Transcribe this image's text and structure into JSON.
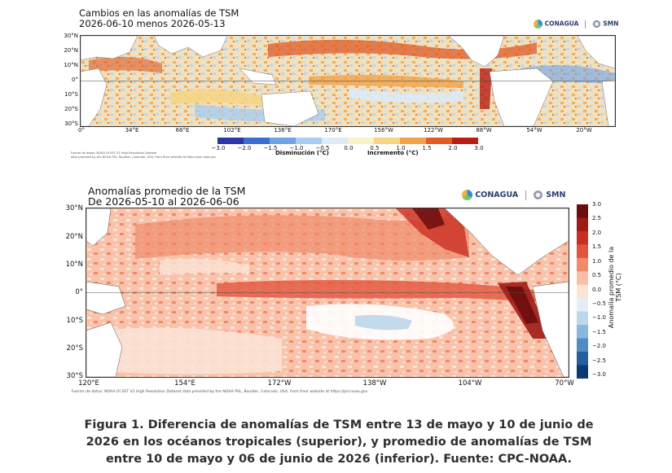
{
  "panel1": {
    "title_line1": "Cambios en las anomalías de TSM",
    "title_line2": "2026-06-10 menos 2026-05-13",
    "lat_labels": [
      "30°N",
      "20°N",
      "10°N",
      "0°",
      "10°S",
      "20°S",
      "30°S"
    ],
    "lon_labels": [
      "0°",
      "34°E",
      "68°E",
      "102°E",
      "136°E",
      "170°E",
      "156°W",
      "122°W",
      "88°W",
      "54°W",
      "20°W"
    ],
    "colorbar_ticks": [
      "−3.0",
      "−2.0",
      "−1.5",
      "−1.0",
      "−0.5",
      "0.0",
      "0.5",
      "1.0",
      "1.5",
      "2.0",
      "3.0"
    ],
    "colorbar_colors": [
      "#2b36a8",
      "#3a6fd0",
      "#6fa4e4",
      "#a9cdf0",
      "#dcebf7",
      "#f7f2c8",
      "#f6d585",
      "#f0a348",
      "#e25b22",
      "#b81c12"
    ],
    "label_decrease": "Disminución (°C)",
    "label_increase": "Incremento (°C)",
    "source_line1": "Fuente de datos: NOAA OI SST V2 High Resolution Dataset",
    "source_line2": "data provided by the NOAA PSL, Boulder, Colorado, USA, from their website at https://psl.noaa.gov",
    "logo_left": "CONAGUA",
    "logo_right": "SMN"
  },
  "panel2": {
    "title_line1": "Anomalías promedio de la TSM",
    "title_line2": "De 2026-05-10 al 2026-06-06",
    "lat_labels": [
      "30°N",
      "20°N",
      "10°N",
      "0°",
      "10°S",
      "20°S",
      "30°S"
    ],
    "lon_labels": [
      "120°E",
      "154°E",
      "172°W",
      "138°W",
      "104°W",
      "70°W"
    ],
    "colorbar_ticks": [
      "3.0",
      "2.5",
      "2.0",
      "1.5",
      "1.0",
      "0.5",
      "0.0",
      "−0.5",
      "−1.0",
      "−1.5",
      "−2.0",
      "−2.5",
      "−3.0"
    ],
    "colorbar_colors": [
      "#6b0d0d",
      "#9e1b16",
      "#c92e22",
      "#e2553c",
      "#f08a6a",
      "#f8bfa6",
      "#fbe3d6",
      "#e3eef7",
      "#bcd6ea",
      "#8ab7db",
      "#4f8cc2",
      "#23609c",
      "#0b3a70"
    ],
    "colorbar_label": "Anomalía promedio de la TSM (°C)",
    "source": "Fuente de datos: NOAA OI SST V2 High Resolution Dataset data provided by the NOAA PSL, Boulder, Colorado, USA, from their website at https://psl.noaa.gov",
    "logo_left": "CONAGUA",
    "logo_right": "SMN"
  },
  "caption": "Figura 1. Diferencia de anomalías de TSM entre 13 de mayo y 10 de junio de 2026 en los océanos tropicales (superior), y promedio de anomalías de TSM entre 10 de mayo y 06 de junio de 2026 (inferior). Fuente: CPC-NOAA."
}
